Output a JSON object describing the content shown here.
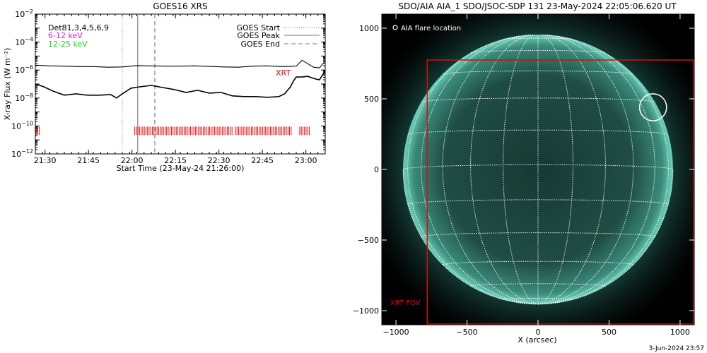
{
  "chart_data": [
    {
      "type": "line",
      "title": "GOES16 XRS",
      "xlabel": "Start Time (23-May-24 21:26:00)",
      "ylabel": "X-ray Flux (W m⁻²)",
      "y_scale": "log",
      "ylim": [
        1e-12,
        0.01
      ],
      "y_ticks": [
        -12,
        -10,
        -8,
        -6,
        -4,
        -2
      ],
      "x_ticks": [
        {
          "minutes": 3.33,
          "label": "21:30"
        },
        {
          "minutes": 18.33,
          "label": "21:45"
        },
        {
          "minutes": 33.33,
          "label": "22:00"
        },
        {
          "minutes": 48.33,
          "label": "22:15"
        },
        {
          "minutes": 63.33,
          "label": "22:30"
        },
        {
          "minutes": 78.33,
          "label": "22:45"
        },
        {
          "minutes": 93.33,
          "label": "23:00"
        }
      ],
      "xlim_minutes": [
        0,
        100
      ],
      "legend": [
        {
          "label": "GOES Start",
          "style": "dotted",
          "minutes": 30.0
        },
        {
          "label": "GOES Peak",
          "style": "solid",
          "minutes": 35.3
        },
        {
          "label": "GOES End",
          "style": "dashed",
          "minutes": 41.2
        }
      ],
      "legend_position": "top-right",
      "energy_legend": [
        {
          "label": "Det81,3,4,5,6,9",
          "color": "#000000"
        },
        {
          "label": "6-12 keV",
          "color": "#e020e0"
        },
        {
          "label": "12-25 keV",
          "color": "#20d020"
        }
      ],
      "annotation": "XRT",
      "series": [
        {
          "x": [
            0,
            5,
            10,
            15,
            20,
            25,
            30,
            35,
            40,
            45,
            50,
            55,
            60,
            65,
            70,
            75,
            80,
            85,
            90,
            92,
            94,
            96,
            98,
            100
          ],
          "log_flux": [
            -5.65,
            -5.7,
            -5.72,
            -5.75,
            -5.75,
            -5.8,
            -5.78,
            -5.68,
            -5.7,
            -5.72,
            -5.72,
            -5.7,
            -5.74,
            -5.78,
            -5.8,
            -5.72,
            -5.7,
            -5.75,
            -5.72,
            -5.3,
            -5.55,
            -5.8,
            -5.85,
            -5.35
          ]
        },
        {
          "x": [
            0,
            3,
            6,
            10,
            14,
            18,
            22,
            26,
            28,
            30,
            33,
            36,
            40,
            44,
            48,
            52,
            56,
            60,
            64,
            68,
            72,
            76,
            80,
            84,
            86,
            88,
            89,
            90,
            92,
            94,
            96,
            98,
            100
          ],
          "log_flux": [
            -7.0,
            -7.2,
            -7.5,
            -7.8,
            -7.7,
            -7.8,
            -7.8,
            -7.75,
            -8.0,
            -7.7,
            -7.3,
            -7.2,
            -7.1,
            -7.25,
            -7.4,
            -7.6,
            -7.45,
            -7.65,
            -7.6,
            -7.85,
            -7.9,
            -7.9,
            -7.95,
            -7.9,
            -7.7,
            -7.2,
            -6.8,
            -6.5,
            -6.5,
            -6.45,
            -6.6,
            -6.7,
            -6.05
          ]
        }
      ],
      "xrt_observation_ranges_minutes": [
        [
          0.3,
          1.5
        ],
        [
          34.3,
          67.9
        ],
        [
          69.0,
          88.7
        ],
        [
          91.2,
          95.0
        ]
      ]
    },
    {
      "type": "heatmap",
      "title": "SDO/AIA AIA_1 SDO/JSOC-SDP 131 23-May-2024 22:05:06.620 UT",
      "xlabel": "X (arcsec)",
      "ylabel": "",
      "xlim": [
        -1100,
        1100
      ],
      "ylim": [
        -1100,
        1100
      ],
      "x_ticks": [
        -1000,
        -500,
        0,
        500,
        1000
      ],
      "y_ticks": [
        -1000,
        -500,
        0,
        500,
        1000
      ],
      "solar_radius_arcsec": 950,
      "grid_spacing_deg": 15,
      "flare_marker_label": "AIA flare location",
      "flare_location_arcsec": [
        810,
        440
      ],
      "flare_circle_radius_arcsec": 95,
      "xrt_fov_label": "XRT FOV",
      "xrt_fov_arcsec": {
        "x": [
          -780,
          1100
        ],
        "y": [
          -1100,
          775
        ]
      },
      "colors": {
        "disk_center": "#163a33",
        "disk_limb": "#4aa895",
        "corona": "#0e3b35",
        "background": "#000000",
        "grid": "#ffffff",
        "fov": "#d01010"
      }
    }
  ],
  "footer": {
    "timestamp": "3-Jun-2024 23:57"
  }
}
